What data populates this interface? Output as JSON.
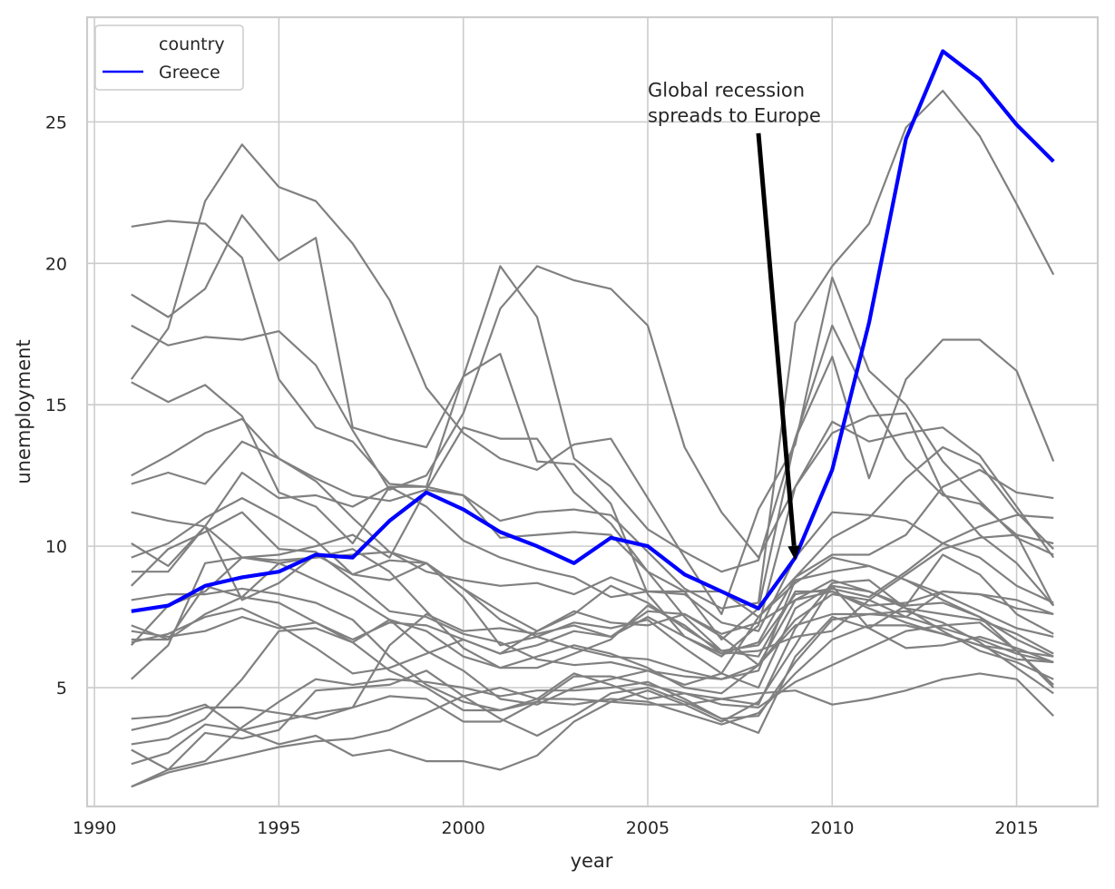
{
  "chart_data": {
    "type": "line",
    "title": "",
    "xlabel": "year",
    "ylabel": "unemployment",
    "xlim": [
      1989.8,
      1990,
      2017.2
    ],
    "ylim": [
      0.8,
      28.7
    ],
    "x_ticks": [
      1990,
      1995,
      2000,
      2005,
      2010,
      2015
    ],
    "y_ticks": [
      5,
      10,
      15,
      20,
      25
    ],
    "grid": true,
    "legend": {
      "placement": "top-left",
      "title": "country",
      "entries": [
        "Greece"
      ]
    },
    "annotation": {
      "lines": [
        "Global recession",
        "spreads to Europe"
      ],
      "text_at": [
        2005,
        25.9
      ],
      "arrow_from": [
        2008,
        24.6
      ],
      "arrow_to": [
        2009,
        9.5
      ]
    },
    "x": [
      1991,
      1992,
      1993,
      1994,
      1995,
      1996,
      1997,
      1998,
      1999,
      2000,
      2001,
      2002,
      2003,
      2004,
      2005,
      2006,
      2007,
      2008,
      2009,
      2010,
      2011,
      2012,
      2013,
      2014,
      2015,
      2016
    ],
    "highlight": {
      "name": "Greece",
      "values": [
        7.7,
        7.9,
        8.6,
        8.9,
        9.1,
        9.7,
        9.6,
        10.9,
        11.9,
        11.3,
        10.5,
        10.0,
        9.4,
        10.3,
        10.0,
        9.0,
        8.4,
        7.8,
        9.6,
        12.7,
        17.9,
        24.4,
        27.5,
        26.5,
        24.9,
        23.6
      ]
    },
    "background_series": [
      {
        "values": [
          21.3,
          21.5,
          21.4,
          20.2,
          15.9,
          14.2,
          13.7,
          12.2,
          12.1,
          11.8,
          10.9,
          11.2,
          11.3,
          11.1,
          9.8,
          8.5,
          7.8,
          8.0,
          17.9,
          19.9,
          21.4,
          24.8,
          26.1,
          24.5,
          22.1,
          19.6
        ]
      },
      {
        "values": [
          15.9,
          17.7,
          22.2,
          24.2,
          22.7,
          22.2,
          20.7,
          18.7,
          15.6,
          14.0,
          13.1,
          12.7,
          13.6,
          13.8,
          11.7,
          9.6,
          7.6,
          11.3,
          13.6,
          19.5,
          16.2,
          15.0,
          13.0,
          11.6,
          10.3,
          9.7
        ]
      },
      {
        "values": [
          18.9,
          18.1,
          19.1,
          21.7,
          20.1,
          20.9,
          14.2,
          13.8,
          13.5,
          16.0,
          19.9,
          18.1,
          13.1,
          12.1,
          10.6,
          9.8,
          9.1,
          9.5,
          13.8,
          17.8,
          15.2,
          13.1,
          11.8,
          11.5,
          10.4,
          7.9
        ]
      },
      {
        "values": [
          17.8,
          17.1,
          17.4,
          17.3,
          17.6,
          16.4,
          14.1,
          12.0,
          12.5,
          14.7,
          18.4,
          19.9,
          19.4,
          19.1,
          17.8,
          13.5,
          11.2,
          9.6,
          12.1,
          14.4,
          13.7,
          14.0,
          14.2,
          13.2,
          11.4,
          9.6
        ]
      },
      {
        "values": [
          15.8,
          15.1,
          15.7,
          14.6,
          11.9,
          11.4,
          10.1,
          12.1,
          12.1,
          16.0,
          16.8,
          13.0,
          12.9,
          11.5,
          8.3,
          6.8,
          6.1,
          7.2,
          12.1,
          14.0,
          14.6,
          14.7,
          11.9,
          10.4,
          9.4,
          7.9
        ]
      },
      {
        "values": [
          12.5,
          13.2,
          14.0,
          14.5,
          13.1,
          12.4,
          11.8,
          11.6,
          12.0,
          14.2,
          13.8,
          13.8,
          11.9,
          10.8,
          9.1,
          8.4,
          6.7,
          7.8,
          13.8,
          16.7,
          12.4,
          15.9,
          17.3,
          17.3,
          16.2,
          13.0
        ]
      },
      {
        "values": [
          12.2,
          12.6,
          12.2,
          13.7,
          13.1,
          12.3,
          11.0,
          9.8,
          9.1,
          8.8,
          8.6,
          8.7,
          8.3,
          8.9,
          8.4,
          8.3,
          7.3,
          7.0,
          9.6,
          11.2,
          11.1,
          10.9,
          10.1,
          9.6,
          8.6,
          8.0
        ]
      },
      {
        "values": [
          11.2,
          10.9,
          10.7,
          9.6,
          9.7,
          10.0,
          10.4,
          9.6,
          12.0,
          11.8,
          10.3,
          10.4,
          10.5,
          10.4,
          9.1,
          7.5,
          6.3,
          6.5,
          8.3,
          8.5,
          8.2,
          9.1,
          10.1,
          10.7,
          11.1,
          11.0
        ]
      },
      {
        "values": [
          10.1,
          9.3,
          10.7,
          12.6,
          11.7,
          11.8,
          11.4,
          12.1,
          11.4,
          10.2,
          9.6,
          9.2,
          8.9,
          8.2,
          8.4,
          8.4,
          8.4,
          7.5,
          8.9,
          9.7,
          9.7,
          10.4,
          12.1,
          12.7,
          11.9,
          11.7
        ]
      },
      {
        "values": [
          9.1,
          9.1,
          10.7,
          8.1,
          8.7,
          9.7,
          9.0,
          8.8,
          9.4,
          8.5,
          7.7,
          7.0,
          7.6,
          8.6,
          8.0,
          7.1,
          6.3,
          6.1,
          8.4,
          8.4,
          7.9,
          8.0,
          8.4,
          8.3,
          8.1,
          7.6
        ]
      },
      {
        "values": [
          9.6,
          10.1,
          11.0,
          11.7,
          11.0,
          10.2,
          9.0,
          9.5,
          9.4,
          8.2,
          6.5,
          6.8,
          7.3,
          7.1,
          7.4,
          6.4,
          5.5,
          5.0,
          7.8,
          8.6,
          7.1,
          7.9,
          9.7,
          9.0,
          7.6,
          6.9
        ]
      },
      {
        "values": [
          8.6,
          9.9,
          10.5,
          11.2,
          9.9,
          9.8,
          8.8,
          7.7,
          7.5,
          6.9,
          6.6,
          6.0,
          5.8,
          5.9,
          5.6,
          5.1,
          5.5,
          7.5,
          8.7,
          9.6,
          9.3,
          8.8,
          8.1,
          7.5,
          6.7,
          6.1
        ]
      },
      {
        "values": [
          7.2,
          6.7,
          8.6,
          8.2,
          8.0,
          7.3,
          6.7,
          7.3,
          7.2,
          6.7,
          6.2,
          7.0,
          7.7,
          7.3,
          7.2,
          7.6,
          6.9,
          7.3,
          8.1,
          8.8,
          8.4,
          7.8,
          7.6,
          7.4,
          6.9,
          6.2
        ]
      },
      {
        "values": [
          7.0,
          6.8,
          7.0,
          7.5,
          7.1,
          7.3,
          6.6,
          7.4,
          7.0,
          6.1,
          5.7,
          6.1,
          6.5,
          6.2,
          5.7,
          5.0,
          4.8,
          5.8,
          8.1,
          8.4,
          7.8,
          7.3,
          6.9,
          6.5,
          6.0,
          5.9
        ]
      },
      {
        "values": [
          8.1,
          8.3,
          8.3,
          8.5,
          8.3,
          8.0,
          7.4,
          6.1,
          5.1,
          4.5,
          4.2,
          4.5,
          4.4,
          4.6,
          4.5,
          4.1,
          3.7,
          4.1,
          5.5,
          6.7,
          7.2,
          7.2,
          6.9,
          6.5,
          6.3,
          6.1
        ]
      },
      {
        "values": [
          5.3,
          6.5,
          9.4,
          9.6,
          9.4,
          8.8,
          8.2,
          7.4,
          6.3,
          5.6,
          4.6,
          4.4,
          5.0,
          5.3,
          5.6,
          5.4,
          5.3,
          5.8,
          7.4,
          8.3,
          8.1,
          7.5,
          7.1,
          6.7,
          6.2,
          5.9
        ]
      },
      {
        "values": [
          6.5,
          7.9,
          8.4,
          9.6,
          9.5,
          9.6,
          9.9,
          9.1,
          7.7,
          6.4,
          5.7,
          5.7,
          6.2,
          6.7,
          7.9,
          7.2,
          6.2,
          6.3,
          6.8,
          7.0,
          8.1,
          9.0,
          9.9,
          10.3,
          10.4,
          10.1
        ]
      },
      {
        "values": [
          6.6,
          6.9,
          7.5,
          7.8,
          7.2,
          6.4,
          5.5,
          5.7,
          6.2,
          6.7,
          6.2,
          6.5,
          7.0,
          6.8,
          7.5,
          6.8,
          6.2,
          6.6,
          8.9,
          10.3,
          11.0,
          12.4,
          13.5,
          12.9,
          11.2,
          9.9
        ]
      },
      {
        "values": [
          3.5,
          3.8,
          4.3,
          4.3,
          4.1,
          3.9,
          4.3,
          6.5,
          7.6,
          7.0,
          7.1,
          6.9,
          7.2,
          6.8,
          7.7,
          7.6,
          6.8,
          5.8,
          7.2,
          7.6,
          7.6,
          7.7,
          7.3,
          6.6,
          5.7,
          4.8
        ]
      },
      {
        "values": [
          3.0,
          3.2,
          3.9,
          5.3,
          7.0,
          7.1,
          6.6,
          5.6,
          5.0,
          4.2,
          4.2,
          4.6,
          5.5,
          5.1,
          4.6,
          4.8,
          4.4,
          4.3,
          5.2,
          5.8,
          6.4,
          7.0,
          7.2,
          7.3,
          6.3,
          5.1
        ]
      },
      {
        "values": [
          3.9,
          4.0,
          4.4,
          3.5,
          3.0,
          3.3,
          2.6,
          2.8,
          2.4,
          2.4,
          2.1,
          2.6,
          3.8,
          4.5,
          4.9,
          4.4,
          3.8,
          4.5,
          6.5,
          8.6,
          8.4,
          7.9,
          8.0,
          7.5,
          6.3,
          5.0
        ]
      },
      {
        "values": [
          2.3,
          2.7,
          3.7,
          3.5,
          3.8,
          4.1,
          4.3,
          4.7,
          4.6,
          3.8,
          3.8,
          4.5,
          5.4,
          5.4,
          5.1,
          4.8,
          4.6,
          4.4,
          7.1,
          8.7,
          8.8,
          7.8,
          7.0,
          6.3,
          5.9,
          5.3
        ]
      },
      {
        "values": [
          1.5,
          2.1,
          2.4,
          3.6,
          4.5,
          5.3,
          5.1,
          5.3,
          5.2,
          5.0,
          4.7,
          4.9,
          4.9,
          5.0,
          5.2,
          4.6,
          3.9,
          3.4,
          6.1,
          7.5,
          7.1,
          6.4,
          6.5,
          6.8,
          6.4,
          5.9
        ]
      },
      {
        "values": [
          2.8,
          2.1,
          3.4,
          3.2,
          3.5,
          4.9,
          5.0,
          5.1,
          5.6,
          4.7,
          3.9,
          3.3,
          4.0,
          4.8,
          5.0,
          4.5,
          3.9,
          4.0,
          5.9,
          7.4,
          7.6,
          7.5,
          8.4,
          8.3,
          7.8,
          7.6
        ]
      },
      {
        "values": [
          1.5,
          2.0,
          2.3,
          2.6,
          2.9,
          3.1,
          3.2,
          3.5,
          4.1,
          4.7,
          5.0,
          4.6,
          4.6,
          4.5,
          4.4,
          4.4,
          4.6,
          4.8,
          4.9,
          4.4,
          4.6,
          4.9,
          5.3,
          5.5,
          5.3,
          4.0
        ]
      },
      {
        "values": [
          6.7,
          6.7,
          7.6,
          8.2,
          9.4,
          9.6,
          9.7,
          9.8,
          9.4,
          8.5,
          7.4,
          6.8,
          6.4,
          6.1,
          6.0,
          5.6,
          5.3,
          5.6,
          8.8,
          9.1,
          9.3,
          8.8,
          8.3,
          7.7,
          7.1,
          6.8
        ]
      }
    ]
  }
}
